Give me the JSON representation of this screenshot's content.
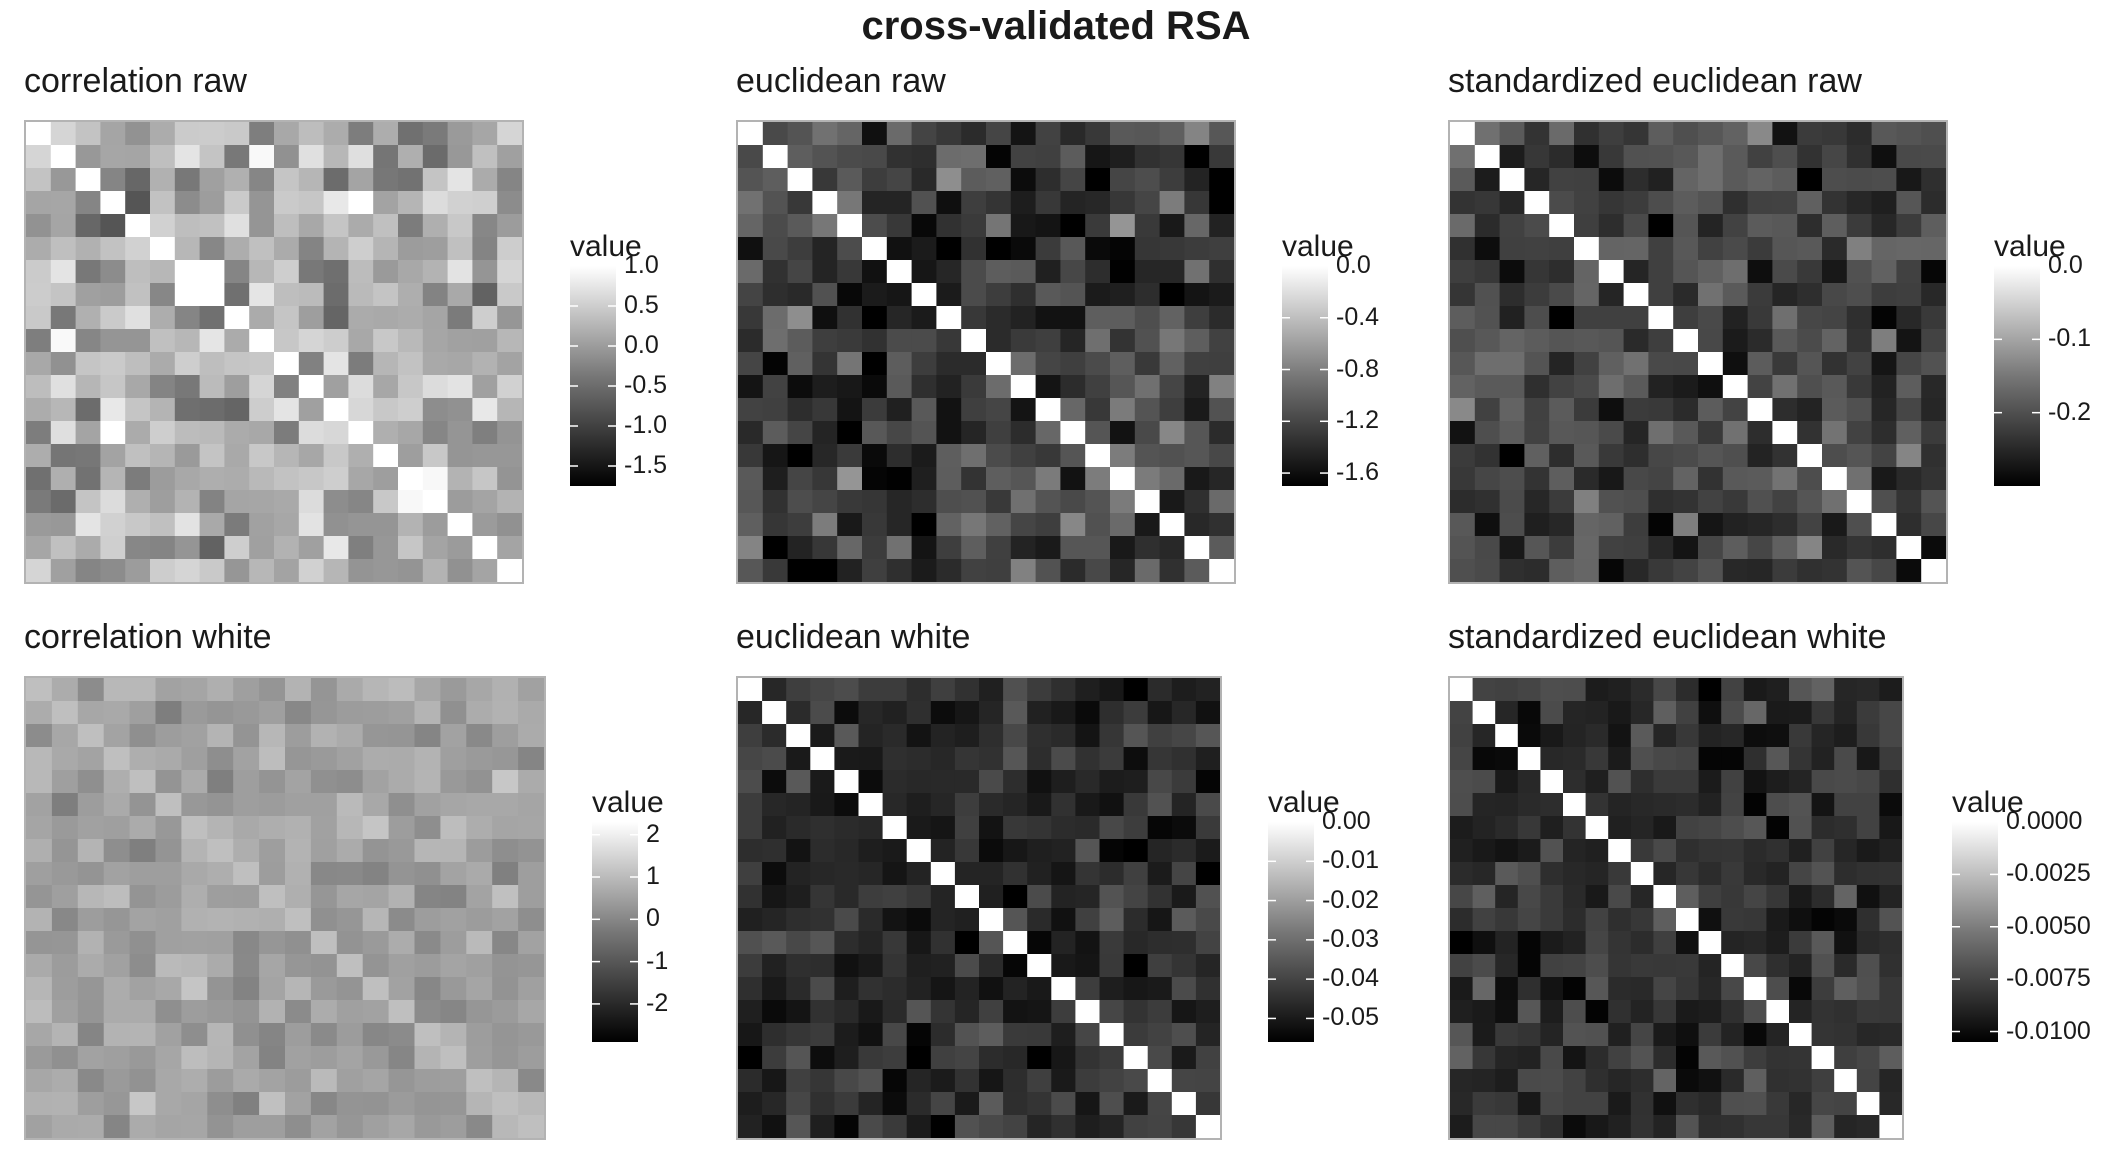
{
  "title": "cross-validated RSA",
  "chart_data": [
    {
      "id": "p1",
      "type": "heatmap",
      "title": "correlation raw",
      "legend_title": "value",
      "size": 20,
      "range": [
        -1.75,
        1.0
      ],
      "diagonal": 1.0,
      "background": 0.1,
      "variance": 0.35,
      "legend_ticks": [
        1.0,
        0.5,
        0.0,
        -0.5,
        -1.0,
        -1.5
      ],
      "legend_tick_labels": [
        "1.0",
        "0.5",
        "0.0",
        "-0.5",
        "-1.0",
        "-1.5"
      ]
    },
    {
      "id": "p2",
      "type": "heatmap",
      "title": "euclidean raw",
      "legend_title": "value",
      "size": 20,
      "range": [
        -1.7,
        0.0
      ],
      "diagonal": 0.0,
      "background": -1.3,
      "variance": 0.22,
      "legend_ticks": [
        0.0,
        -0.4,
        -0.8,
        -1.2,
        -1.6
      ],
      "legend_tick_labels": [
        "0.0",
        "-0.4",
        "-0.8",
        "-1.2",
        "-1.6"
      ]
    },
    {
      "id": "p3",
      "type": "heatmap",
      "title": "standardized euclidean raw",
      "legend_title": "value",
      "size": 20,
      "range": [
        -0.3,
        0.0
      ],
      "diagonal": 0.0,
      "background": -0.22,
      "variance": 0.035,
      "legend_ticks": [
        0.0,
        -0.1,
        -0.2
      ],
      "legend_tick_labels": [
        "0.0",
        "-0.1",
        "-0.2"
      ]
    },
    {
      "id": "p4",
      "type": "heatmap",
      "title": "correlation white",
      "legend_title": "value",
      "size": 20,
      "range": [
        -2.9,
        2.3
      ],
      "diagonal": 1.0,
      "background": 0.4,
      "variance": 0.35,
      "legend_ticks": [
        2,
        1,
        0,
        -1,
        -2
      ],
      "legend_tick_labels": [
        "2",
        "1",
        "0",
        "-1",
        "-2"
      ]
    },
    {
      "id": "p5",
      "type": "heatmap",
      "title": "euclidean white",
      "legend_title": "value",
      "size": 20,
      "range": [
        -0.056,
        0.0
      ],
      "diagonal": 0.0,
      "background": -0.046,
      "variance": 0.005,
      "legend_ticks": [
        0.0,
        -0.01,
        -0.02,
        -0.03,
        -0.04,
        -0.05
      ],
      "legend_tick_labels": [
        "0.00",
        "-0.01",
        "-0.02",
        "-0.03",
        "-0.04",
        "-0.05"
      ]
    },
    {
      "id": "p6",
      "type": "heatmap",
      "title": "standardized euclidean white",
      "legend_title": "value",
      "size": 20,
      "range": [
        -0.0105,
        0.0
      ],
      "diagonal": 0.0,
      "background": -0.0085,
      "variance": 0.0009,
      "legend_ticks": [
        0.0,
        -0.0025,
        -0.005,
        -0.0075,
        -0.01
      ],
      "legend_tick_labels": [
        "0.0000",
        "-0.0025",
        "-0.0050",
        "-0.0075",
        "-0.0100"
      ]
    }
  ]
}
